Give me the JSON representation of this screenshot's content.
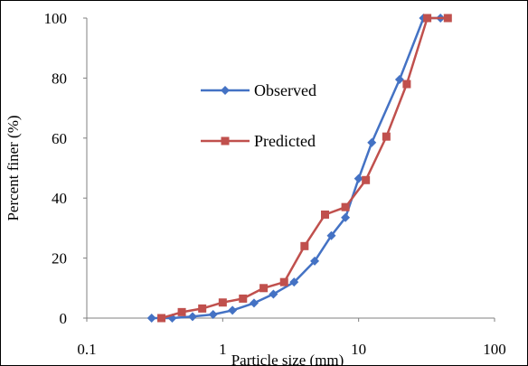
{
  "chart_data": {
    "type": "line",
    "title": "",
    "xlabel": "Particle size (mm)",
    "ylabel": "Percent finer (%)",
    "x_scale": "log",
    "xlim": [
      0.1,
      100
    ],
    "ylim": [
      0,
      100
    ],
    "x_ticks": [
      "0.1",
      "1",
      "10",
      "100"
    ],
    "y_ticks": [
      "0",
      "20",
      "40",
      "60",
      "80",
      "100"
    ],
    "grid": false,
    "legend_position": "center-left",
    "series": [
      {
        "name": "Observed",
        "color": "#4472C4",
        "marker": "diamond",
        "x": [
          0.3,
          0.425,
          0.6,
          0.85,
          1.18,
          1.7,
          2.36,
          3.35,
          4.75,
          6.3,
          8.0,
          10.0,
          12.5,
          20.0,
          30.0,
          40.0
        ],
        "y": [
          0,
          0,
          0.5,
          1.2,
          2.6,
          5,
          8,
          12,
          19,
          27.5,
          33.5,
          46.5,
          58.5,
          79.5,
          100,
          100
        ]
      },
      {
        "name": "Predicted",
        "color": "#C0504D",
        "marker": "square",
        "x": [
          0.354,
          0.5,
          0.707,
          1.0,
          1.41,
          2.0,
          2.83,
          4.0,
          5.66,
          8.0,
          11.3,
          16.0,
          22.6,
          32.0,
          45.3
        ],
        "y": [
          0,
          2,
          3.2,
          5.2,
          6.5,
          10,
          12,
          24,
          34.5,
          37,
          46,
          60.5,
          78,
          100,
          100
        ]
      }
    ]
  }
}
